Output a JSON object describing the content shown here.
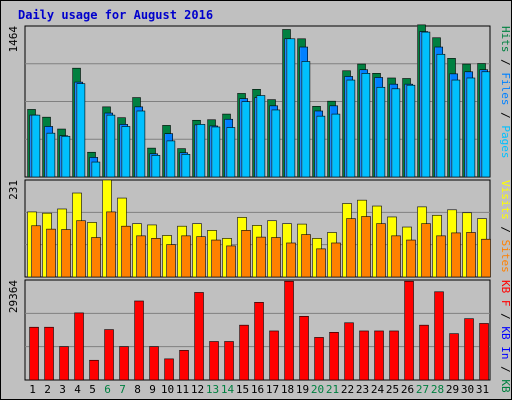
{
  "chart_data": {
    "type": "bar",
    "title": "Daily usage for August 2016",
    "colors": {
      "title": "#0000cc",
      "hits": "#008040",
      "files": "#0080ff",
      "pages": "#00c0ff",
      "visits": "#ffff00",
      "sites": "#ff8000",
      "kb_f": "#ff0000",
      "kb_in": "#0000ff",
      "kb_out": "#008040",
      "weekend": "#008040",
      "weekday": "#000000",
      "panel": "#c0c0c0",
      "grid": "#808080"
    },
    "days": [
      "1",
      "2",
      "3",
      "4",
      "5",
      "6",
      "7",
      "8",
      "9",
      "10",
      "11",
      "12",
      "13",
      "14",
      "15",
      "16",
      "17",
      "18",
      "19",
      "20",
      "21",
      "22",
      "23",
      "24",
      "25",
      "26",
      "27",
      "28",
      "29",
      "30",
      "31"
    ],
    "weekend_days": [
      6,
      7,
      13,
      14,
      20,
      21,
      27,
      28
    ],
    "panels": [
      {
        "ymax_label": "1464",
        "ymax": 1464,
        "right_labels": [
          {
            "text": "Hits",
            "color": "#008040"
          },
          {
            "text": " / ",
            "color": "#000000"
          },
          {
            "text": "Files",
            "color": "#0080ff"
          },
          {
            "text": " / ",
            "color": "#000000"
          },
          {
            "text": "Pages",
            "color": "#00c0ff"
          }
        ],
        "series": [
          {
            "name": "Hits",
            "color": "#008040",
            "values": [
              655,
              580,
              465,
              1055,
              240,
              680,
              575,
              770,
              280,
              500,
              275,
              550,
              555,
              610,
              810,
              850,
              750,
              1430,
              1340,
              685,
              735,
              1030,
              1095,
              1005,
              960,
              955,
              1475,
              1350,
              1150,
              1095,
              1100
            ]
          },
          {
            "name": "Files",
            "color": "#0080ff",
            "values": [
              600,
              490,
              400,
              920,
              190,
              620,
              510,
              680,
              225,
              420,
              235,
              505,
              495,
              560,
              760,
              770,
              690,
              1340,
              1260,
              640,
              690,
              975,
              1040,
              965,
              900,
              900,
              1410,
              1260,
              1000,
              1020,
              1040
            ]
          },
          {
            "name": "Pages",
            "color": "#00c0ff",
            "values": [
              600,
              425,
              395,
              905,
              145,
              600,
              490,
              640,
              210,
              350,
              220,
              510,
              485,
              480,
              730,
              790,
              650,
              1340,
              1120,
              590,
              610,
              940,
              1005,
              870,
              855,
              890,
              1405,
              1190,
              940,
              960,
              1020
            ]
          }
        ]
      },
      {
        "ymax_label": "231",
        "ymax": 231,
        "right_labels": [
          {
            "text": "Visits",
            "color": "#ffff00"
          },
          {
            "text": " / ",
            "color": "#000000"
          },
          {
            "text": "Sites",
            "color": "#ff8000"
          }
        ],
        "series": [
          {
            "name": "Visits",
            "color": "#ffff00",
            "values": [
              155,
              152,
              162,
              200,
              130,
              231,
              188,
              127,
              124,
              99,
              121,
              127,
              111,
              92,
              142,
              123,
              134,
              127,
              126,
              92,
              106,
              175,
              183,
              169,
              143,
              119,
              167,
              147,
              160,
              153,
              139
            ]
          },
          {
            "name": "Sites",
            "color": "#ff8000",
            "values": [
              122,
              114,
              113,
              134,
              94,
              155,
              121,
              98,
              92,
              77,
              98,
              96,
              88,
              74,
              111,
              95,
              94,
              81,
              101,
              67,
              81,
              139,
              144,
              127,
              98,
              88,
              127,
              98,
              105,
              106,
              90
            ]
          }
        ]
      },
      {
        "ymax_label": "29364",
        "ymax": 29364,
        "right_labels": [
          {
            "text": "KB F",
            "color": "#ff0000"
          },
          {
            "text": " / ",
            "color": "#000000"
          },
          {
            "text": "KB In",
            "color": "#0000ff"
          },
          {
            "text": " / ",
            "color": "#000000"
          },
          {
            "text": "KB Out",
            "color": "#008040"
          }
        ],
        "series": [
          {
            "name": "KB F",
            "color": "#ff0000",
            "values": [
              15500,
              15500,
              9800,
              19700,
              5800,
              14800,
              9800,
              23200,
              9800,
              6200,
              8700,
              25700,
              11300,
              11300,
              16100,
              22800,
              14400,
              29000,
              18700,
              12500,
              14000,
              16800,
              14400,
              14400,
              14400,
              29000,
              16100,
              25900,
              13600,
              18000,
              16600
            ]
          }
        ]
      }
    ]
  }
}
